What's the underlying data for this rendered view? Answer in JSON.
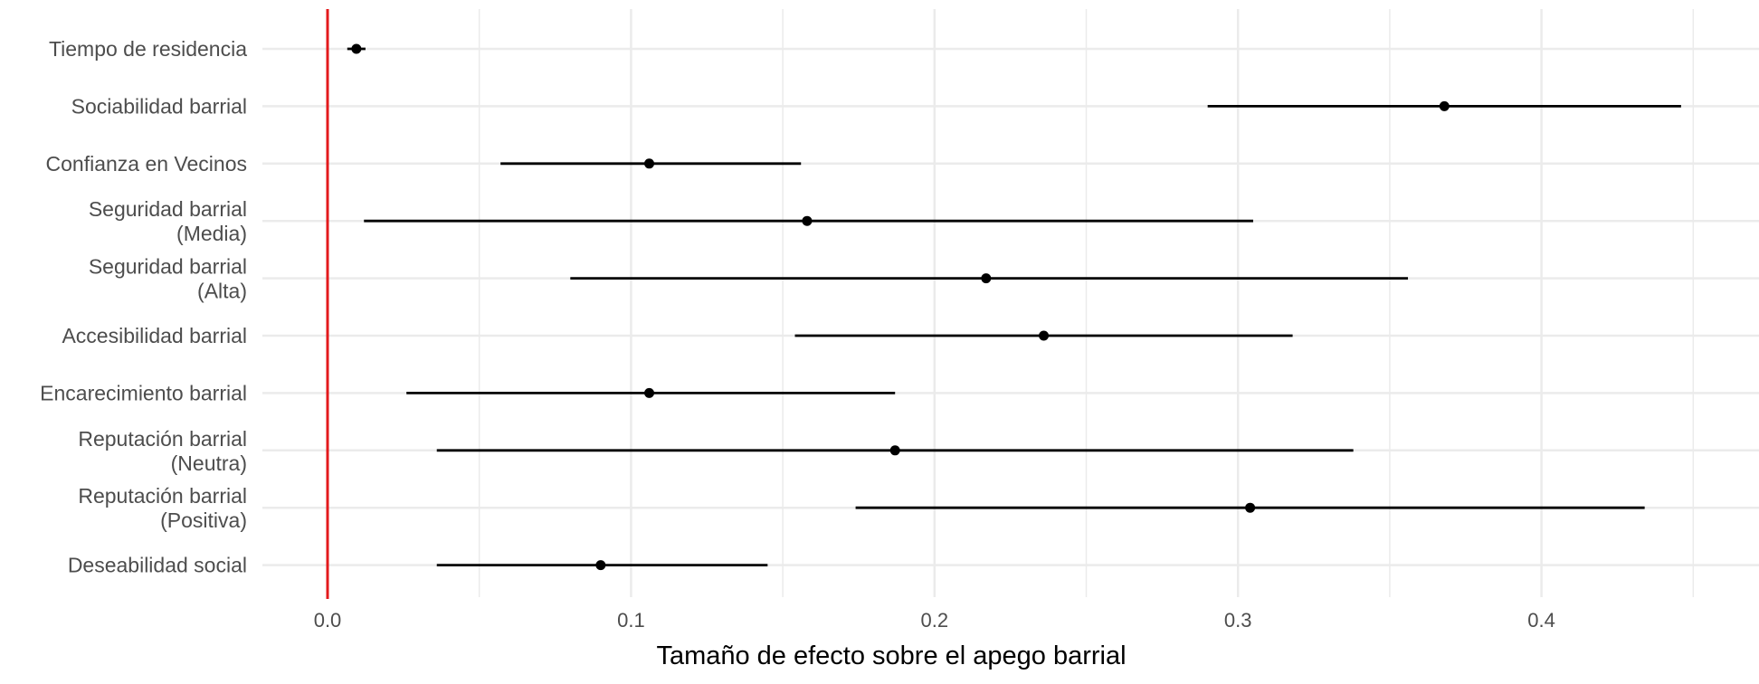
{
  "chart_data": {
    "type": "forest",
    "title": "",
    "xlabel": "Tamaño de efecto sobre el apego barrial",
    "ylabel": "",
    "xlim": [
      -0.02,
      0.47
    ],
    "x_ticks": [
      {
        "value": 0.0,
        "label": "0.0"
      },
      {
        "value": 0.1,
        "label": "0.1"
      },
      {
        "value": 0.2,
        "label": "0.2"
      },
      {
        "value": 0.3,
        "label": "0.3"
      },
      {
        "value": 0.4,
        "label": "0.4"
      }
    ],
    "reference_line": {
      "value": 0.0,
      "color": "#e31a1c"
    },
    "grid": true,
    "colors": {
      "points": "#000000",
      "grid": "#ebebeb",
      "labels": "#4d4d4d"
    },
    "rows": [
      {
        "label_lines": [
          "Tiempo de residencia"
        ],
        "estimate": 0.0095,
        "lower": 0.0065,
        "upper": 0.0125
      },
      {
        "label_lines": [
          "Sociabilidad barrial"
        ],
        "estimate": 0.368,
        "lower": 0.29,
        "upper": 0.446
      },
      {
        "label_lines": [
          "Confianza en Vecinos"
        ],
        "estimate": 0.106,
        "lower": 0.057,
        "upper": 0.156
      },
      {
        "label_lines": [
          "Seguridad barrial",
          "(Media)"
        ],
        "estimate": 0.158,
        "lower": 0.012,
        "upper": 0.305
      },
      {
        "label_lines": [
          "Seguridad barrial",
          "(Alta)"
        ],
        "estimate": 0.217,
        "lower": 0.08,
        "upper": 0.356
      },
      {
        "label_lines": [
          "Accesibilidad barrial"
        ],
        "estimate": 0.236,
        "lower": 0.154,
        "upper": 0.318
      },
      {
        "label_lines": [
          "Encarecimiento barrial"
        ],
        "estimate": 0.106,
        "lower": 0.026,
        "upper": 0.187
      },
      {
        "label_lines": [
          "Reputación barrial",
          "(Neutra)"
        ],
        "estimate": 0.187,
        "lower": 0.036,
        "upper": 0.338
      },
      {
        "label_lines": [
          "Reputación barrial",
          "(Positiva)"
        ],
        "estimate": 0.304,
        "lower": 0.174,
        "upper": 0.434
      },
      {
        "label_lines": [
          "Deseabilidad social"
        ],
        "estimate": 0.09,
        "lower": 0.036,
        "upper": 0.145
      }
    ]
  }
}
